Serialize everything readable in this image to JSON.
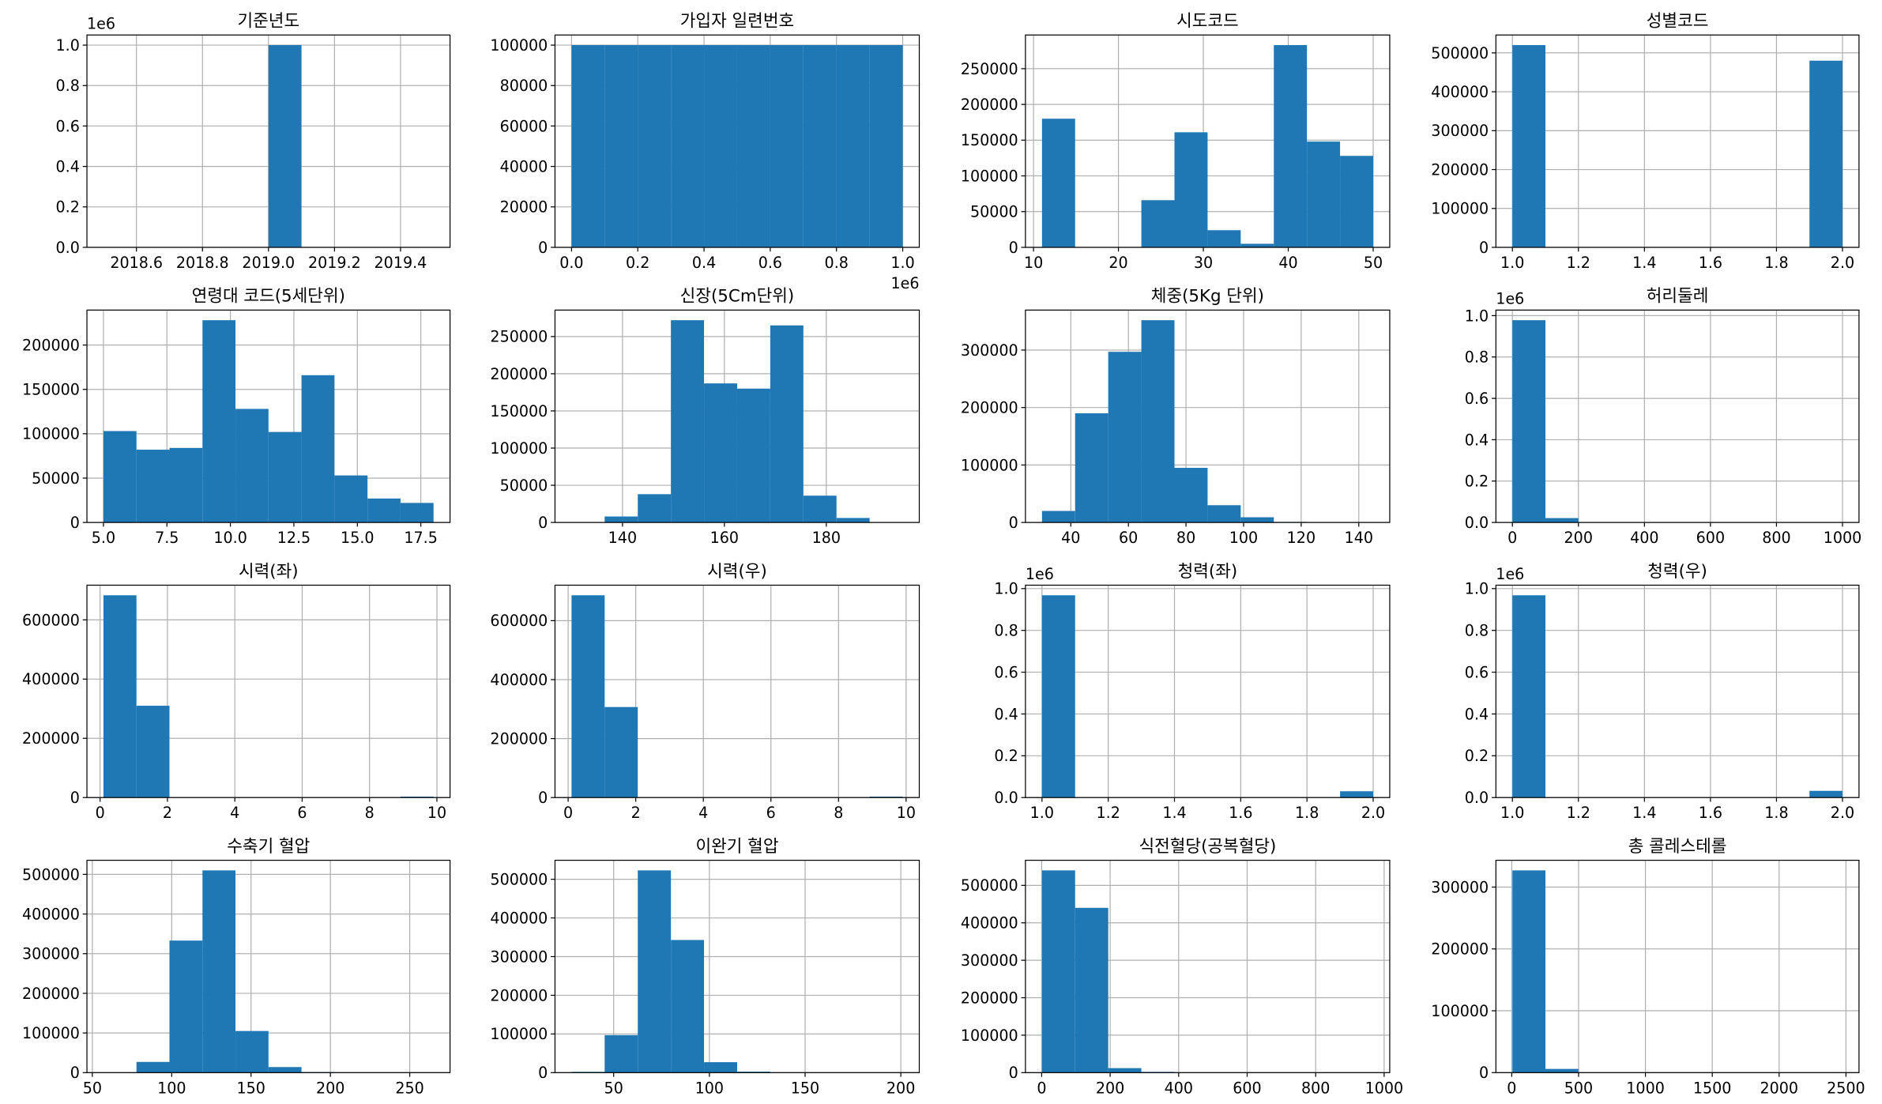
{
  "chart_data": [
    {
      "type": "histogram",
      "title": "기준년도",
      "color": "#1f77b4",
      "grid": true,
      "y_offset_text": "1e6",
      "bins": [
        2018.5,
        2018.6,
        2018.7,
        2018.8,
        2018.9,
        2019.0,
        2019.1,
        2019.2,
        2019.3,
        2019.4,
        2019.5
      ],
      "values": [
        0,
        0,
        0,
        0,
        0,
        1000000,
        0,
        0,
        0,
        0
      ],
      "xlim": [
        2018.45,
        2019.55
      ],
      "xticks": [
        2018.6,
        2018.8,
        {
          "value": 2019.0,
          "label": "2019.0"
        },
        2019.2,
        2019.4
      ],
      "ylim": [
        0,
        1050000
      ],
      "yticks": [
        {
          "value": 0,
          "label": "0.0"
        },
        {
          "value": 200000,
          "label": "0.2"
        },
        {
          "value": 400000,
          "label": "0.4"
        },
        {
          "value": 600000,
          "label": "0.6"
        },
        {
          "value": 800000,
          "label": "0.8"
        },
        {
          "value": 1000000,
          "label": "1.0"
        }
      ]
    },
    {
      "type": "histogram",
      "title": "가입자 일련번호",
      "color": "#1f77b4",
      "grid": true,
      "x_offset_text": "1e6",
      "bins": [
        0,
        100000,
        200000,
        300000,
        400000,
        500000,
        600000,
        700000,
        800000,
        900000,
        1000000
      ],
      "values": [
        100000,
        100000,
        100000,
        100000,
        100000,
        100000,
        100000,
        100000,
        100000,
        100000
      ],
      "xlim": [
        -50000,
        1050000
      ],
      "xticks": [
        {
          "value": 0,
          "label": "0.0"
        },
        {
          "value": 200000,
          "label": "0.2"
        },
        {
          "value": 400000,
          "label": "0.4"
        },
        {
          "value": 600000,
          "label": "0.6"
        },
        {
          "value": 800000,
          "label": "0.8"
        },
        {
          "value": 1000000,
          "label": "1.0"
        }
      ],
      "ylim": [
        0,
        105000
      ],
      "yticks": [
        0,
        20000,
        40000,
        60000,
        80000,
        100000
      ]
    },
    {
      "type": "histogram",
      "title": "시도코드",
      "color": "#1f77b4",
      "grid": true,
      "bins": [
        11,
        14.9,
        18.8,
        22.7,
        26.6,
        30.5,
        34.4,
        38.3,
        42.2,
        46.1,
        50
      ],
      "values": [
        180000,
        0,
        0,
        66000,
        161000,
        24000,
        5000,
        283000,
        148000,
        128000
      ],
      "xlim": [
        9.05,
        51.95
      ],
      "xticks": [
        10,
        20,
        30,
        40,
        50
      ],
      "ylim": [
        0,
        297150
      ],
      "yticks": [
        0,
        50000,
        100000,
        150000,
        200000,
        250000
      ]
    },
    {
      "type": "histogram",
      "title": "성별코드",
      "color": "#1f77b4",
      "grid": true,
      "bins": [
        1.0,
        1.1,
        1.2,
        1.3,
        1.4,
        1.5,
        1.6,
        1.7,
        1.8,
        1.9,
        2.0
      ],
      "values": [
        520000,
        0,
        0,
        0,
        0,
        0,
        0,
        0,
        0,
        480000
      ],
      "xlim": [
        0.95,
        2.05
      ],
      "xticks": [
        {
          "value": 1.0,
          "label": "1.0"
        },
        1.2,
        1.4,
        1.6,
        1.8,
        {
          "value": 2.0,
          "label": "2.0"
        }
      ],
      "ylim": [
        0,
        546000
      ],
      "yticks": [
        0,
        100000,
        200000,
        300000,
        400000,
        500000
      ]
    },
    {
      "type": "histogram",
      "title": "연령대 코드(5세단위)",
      "color": "#1f77b4",
      "grid": true,
      "bins": [
        5,
        6.3,
        7.6,
        8.9,
        10.2,
        11.5,
        12.8,
        14.1,
        15.4,
        16.7,
        18
      ],
      "values": [
        103000,
        82000,
        84000,
        228000,
        128000,
        102000,
        166000,
        53000,
        27000,
        22000
      ],
      "xlim": [
        4.35,
        18.65
      ],
      "xticks": [
        {
          "value": 5,
          "label": "5.0"
        },
        7.5,
        {
          "value": 10,
          "label": "10.0"
        },
        12.5,
        {
          "value": 15,
          "label": "15.0"
        },
        17.5
      ],
      "ylim": [
        0,
        239400
      ],
      "yticks": [
        0,
        50000,
        100000,
        150000,
        200000
      ]
    },
    {
      "type": "histogram",
      "title": "신장(5Cm단위)",
      "color": "#1f77b4",
      "grid": true,
      "bins": [
        130,
        136.5,
        143,
        149.5,
        156,
        162.5,
        169,
        175.5,
        182,
        188.5,
        195
      ],
      "values": [
        500,
        8000,
        38000,
        272000,
        187000,
        180000,
        265000,
        36000,
        6000,
        500
      ],
      "xlim": [
        126.75,
        198.25
      ],
      "xticks": [
        140,
        160,
        180
      ],
      "ylim": [
        0,
        285600
      ],
      "yticks": [
        0,
        50000,
        100000,
        150000,
        200000,
        250000
      ]
    },
    {
      "type": "histogram",
      "title": "체중(5Kg 단위)",
      "color": "#1f77b4",
      "grid": true,
      "bins": [
        30,
        41.5,
        53,
        64.5,
        76,
        87.5,
        99,
        110.5,
        122,
        133.5,
        145
      ],
      "values": [
        20000,
        190000,
        297000,
        352000,
        95000,
        30000,
        9000,
        1000,
        0,
        500
      ],
      "xlim": [
        24.25,
        150.75
      ],
      "xticks": [
        40,
        60,
        80,
        100,
        120,
        140
      ],
      "ylim": [
        0,
        369600
      ],
      "yticks": [
        0,
        100000,
        200000,
        300000
      ]
    },
    {
      "type": "histogram",
      "title": "허리둘레",
      "color": "#1f77b4",
      "grid": true,
      "y_offset_text": "1e6",
      "bins": [
        0,
        100,
        200,
        300,
        400,
        500,
        600,
        700,
        800,
        900,
        1000
      ],
      "values": [
        978000,
        21000,
        0,
        0,
        0,
        0,
        0,
        0,
        0,
        400
      ],
      "xlim": [
        -50,
        1050
      ],
      "xticks": [
        0,
        200,
        400,
        600,
        800,
        1000
      ],
      "ylim": [
        0,
        1026900
      ],
      "yticks": [
        {
          "value": 0,
          "label": "0.0"
        },
        {
          "value": 200000,
          "label": "0.2"
        },
        {
          "value": 400000,
          "label": "0.4"
        },
        {
          "value": 600000,
          "label": "0.6"
        },
        {
          "value": 800000,
          "label": "0.8"
        },
        {
          "value": 1000000,
          "label": "1.0"
        }
      ]
    },
    {
      "type": "histogram",
      "title": "시력(좌)",
      "color": "#1f77b4",
      "grid": true,
      "bins": [
        0.1,
        1.08,
        2.06,
        3.04,
        4.02,
        5,
        5.98,
        6.96,
        7.94,
        8.92,
        9.9
      ],
      "values": [
        683000,
        310000,
        0,
        0,
        0,
        0,
        0,
        0,
        0,
        3000
      ],
      "xlim": [
        -0.39,
        10.39
      ],
      "xticks": [
        0,
        2,
        4,
        6,
        8,
        10
      ],
      "ylim": [
        0,
        717150
      ],
      "yticks": [
        0,
        200000,
        400000,
        600000
      ]
    },
    {
      "type": "histogram",
      "title": "시력(우)",
      "color": "#1f77b4",
      "grid": true,
      "bins": [
        0.1,
        1.08,
        2.06,
        3.04,
        4.02,
        5,
        5.98,
        6.96,
        7.94,
        8.92,
        9.9
      ],
      "values": [
        686000,
        307000,
        0,
        0,
        0,
        0,
        0,
        0,
        0,
        3000
      ],
      "xlim": [
        -0.39,
        10.39
      ],
      "xticks": [
        0,
        2,
        4,
        6,
        8,
        10
      ],
      "ylim": [
        0,
        720300
      ],
      "yticks": [
        0,
        200000,
        400000,
        600000
      ]
    },
    {
      "type": "histogram",
      "title": "청력(좌)",
      "color": "#1f77b4",
      "grid": true,
      "y_offset_text": "1e6",
      "bins": [
        1.0,
        1.1,
        1.2,
        1.3,
        1.4,
        1.5,
        1.6,
        1.7,
        1.8,
        1.9,
        2.0
      ],
      "values": [
        968000,
        0,
        0,
        0,
        0,
        0,
        0,
        0,
        0,
        30000
      ],
      "xlim": [
        0.95,
        2.05
      ],
      "xticks": [
        {
          "value": 1.0,
          "label": "1.0"
        },
        1.2,
        1.4,
        1.6,
        1.8,
        {
          "value": 2.0,
          "label": "2.0"
        }
      ],
      "ylim": [
        0,
        1016400
      ],
      "yticks": [
        {
          "value": 0,
          "label": "0.0"
        },
        {
          "value": 200000,
          "label": "0.2"
        },
        {
          "value": 400000,
          "label": "0.4"
        },
        {
          "value": 600000,
          "label": "0.6"
        },
        {
          "value": 800000,
          "label": "0.8"
        },
        {
          "value": 1000000,
          "label": "1.0"
        }
      ]
    },
    {
      "type": "histogram",
      "title": "청력(우)",
      "color": "#1f77b4",
      "grid": true,
      "y_offset_text": "1e6",
      "bins": [
        1.0,
        1.1,
        1.2,
        1.3,
        1.4,
        1.5,
        1.6,
        1.7,
        1.8,
        1.9,
        2.0
      ],
      "values": [
        968000,
        0,
        0,
        0,
        0,
        0,
        0,
        0,
        0,
        32000
      ],
      "xlim": [
        0.95,
        2.05
      ],
      "xticks": [
        {
          "value": 1.0,
          "label": "1.0"
        },
        1.2,
        1.4,
        1.6,
        1.8,
        {
          "value": 2.0,
          "label": "2.0"
        }
      ],
      "ylim": [
        0,
        1016400
      ],
      "yticks": [
        {
          "value": 0,
          "label": "0.0"
        },
        {
          "value": 200000,
          "label": "0.2"
        },
        {
          "value": 400000,
          "label": "0.4"
        },
        {
          "value": 600000,
          "label": "0.6"
        },
        {
          "value": 800000,
          "label": "0.8"
        },
        {
          "value": 1000000,
          "label": "1.0"
        }
      ]
    },
    {
      "type": "histogram",
      "title": "수축기 혈압",
      "color": "#1f77b4",
      "grid": true,
      "bins": [
        57,
        77.8,
        98.6,
        119.4,
        140.2,
        161,
        181.8,
        202.6,
        223.4,
        244.2,
        265
      ],
      "values": [
        500,
        27000,
        333000,
        510000,
        105000,
        14000,
        1500,
        300,
        100,
        50
      ],
      "xlim": [
        46.6,
        275.4
      ],
      "xticks": [
        50,
        100,
        150,
        200,
        250
      ],
      "ylim": [
        0,
        535500
      ],
      "yticks": [
        0,
        100000,
        200000,
        300000,
        400000,
        500000
      ]
    },
    {
      "type": "histogram",
      "title": "이완기 혈압",
      "color": "#1f77b4",
      "grid": true,
      "bins": [
        28,
        45.3,
        62.6,
        79.9,
        97.2,
        114.5,
        131.8,
        149.1,
        166.4,
        183.7,
        201
      ],
      "values": [
        2000,
        97000,
        523000,
        343000,
        27000,
        2500,
        300,
        100,
        50,
        20
      ],
      "xlim": [
        19.35,
        209.65
      ],
      "xticks": [
        50,
        100,
        150,
        200
      ],
      "ylim": [
        0,
        549150
      ],
      "yticks": [
        0,
        100000,
        200000,
        300000,
        400000,
        500000
      ]
    },
    {
      "type": "histogram",
      "title": "식전혈당(공복혈당)",
      "color": "#1f77b4",
      "grid": true,
      "bins": [
        1,
        97.7,
        194.4,
        291.1,
        387.8,
        484.5,
        581.2,
        677.9,
        774.6,
        871.3,
        968
      ],
      "values": [
        540000,
        440000,
        12000,
        2000,
        500,
        200,
        100,
        50,
        20,
        10
      ],
      "xlim": [
        -47.35,
        1016.35
      ],
      "xticks": [
        0,
        200,
        400,
        600,
        800,
        1000
      ],
      "ylim": [
        0,
        567000
      ],
      "yticks": [
        0,
        100000,
        200000,
        300000,
        400000,
        500000
      ]
    },
    {
      "type": "histogram",
      "title": "총 콜레스테롤",
      "color": "#1f77b4",
      "grid": true,
      "bins": [
        5,
        251.9,
        498.8,
        745.7,
        992.6,
        1239.5,
        1486.4,
        1733.3,
        1980.2,
        2227.1,
        2474
      ],
      "values": [
        327000,
        6000,
        300,
        50,
        10,
        5,
        0,
        0,
        0,
        2
      ],
      "xlim": [
        -118.45,
        2597.45
      ],
      "xticks": [
        0,
        500,
        1000,
        1500,
        2000,
        2500
      ],
      "ylim": [
        0,
        343350
      ],
      "yticks": [
        0,
        100000,
        200000,
        300000
      ]
    }
  ]
}
